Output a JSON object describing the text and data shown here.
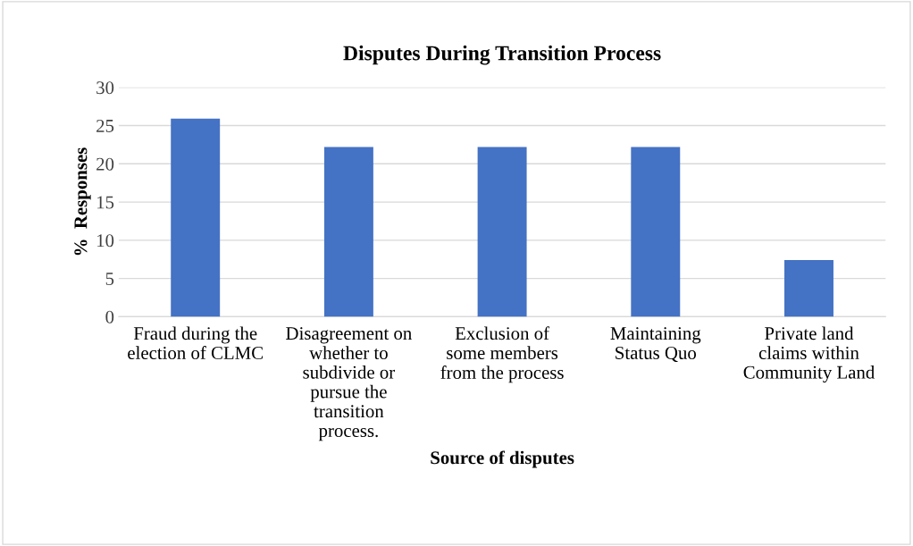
{
  "chart_data": {
    "type": "bar",
    "title": "Disputes During Transition Process",
    "xlabel": "Source of disputes",
    "ylabel": "%  Responses",
    "categories": [
      "Fraud during the election of CLMC",
      "Disagreement on whether to subdivide or pursue the transition process.",
      "Exclusion of some members from the process",
      "Maintaining Status Quo",
      "Private land claims within Community Land"
    ],
    "values": [
      25.9,
      22.2,
      22.2,
      22.2,
      7.4
    ],
    "color": "#4472c4",
    "ylim": [
      0,
      30
    ],
    "yticks": [
      0,
      5,
      10,
      15,
      20,
      25,
      30
    ],
    "grid": "y",
    "legend": false
  }
}
